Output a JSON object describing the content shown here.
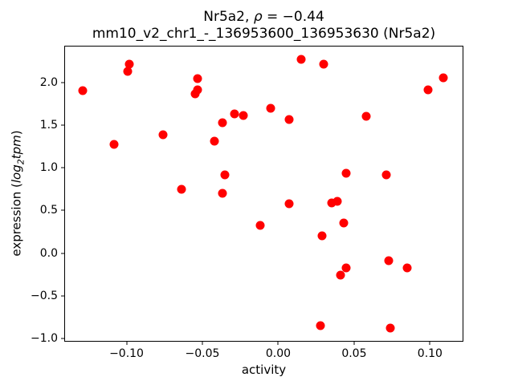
{
  "title": {
    "line1_prefix": "Nr5a2, ",
    "line1_rho": "ρ",
    "line1_suffix": " = −0.44",
    "line2": "mm10_v2_chr1_-_136953600_136953630 (Nr5a2)"
  },
  "axes": {
    "xlabel": "activity",
    "ylabel_prefix": "expression (",
    "ylabel_log": "log",
    "ylabel_sub": "2",
    "ylabel_tpm": "tpm",
    "ylabel_suffix": ")"
  },
  "chart_data": {
    "type": "scatter",
    "title": "Nr5a2, ρ = −0.44",
    "subtitle": "mm10_v2_chr1_-_136953600_136953630 (Nr5a2)",
    "xlabel": "activity",
    "ylabel": "expression (log2 tpm)",
    "xlim": [
      -0.1405,
      0.1215
    ],
    "ylim": [
      -1.03,
      2.425
    ],
    "grid": false,
    "legend": null,
    "marker_color": "#ff0000",
    "marker_diameter_px": 11,
    "spine_color": "#000000",
    "xticks": [
      {
        "v": -0.1,
        "label": "−0.10"
      },
      {
        "v": -0.05,
        "label": "−0.05"
      },
      {
        "v": 0.0,
        "label": "0.00"
      },
      {
        "v": 0.05,
        "label": "0.05"
      },
      {
        "v": 0.1,
        "label": "0.10"
      }
    ],
    "yticks": [
      {
        "v": -1.0,
        "label": "−1.0"
      },
      {
        "v": -0.5,
        "label": "−0.5"
      },
      {
        "v": 0.0,
        "label": "0.0"
      },
      {
        "v": 0.5,
        "label": "0.5"
      },
      {
        "v": 1.0,
        "label": "1.0"
      },
      {
        "v": 1.5,
        "label": "1.5"
      },
      {
        "v": 2.0,
        "label": "2.0"
      }
    ],
    "points": [
      [
        -0.129,
        1.91
      ],
      [
        -0.108,
        1.28
      ],
      [
        -0.099,
        2.13
      ],
      [
        -0.098,
        2.22
      ],
      [
        -0.076,
        1.39
      ],
      [
        -0.064,
        0.75
      ],
      [
        -0.055,
        1.87
      ],
      [
        -0.053,
        2.05
      ],
      [
        -0.053,
        1.92
      ],
      [
        -0.042,
        1.31
      ],
      [
        -0.037,
        1.53
      ],
      [
        -0.037,
        0.7
      ],
      [
        -0.035,
        0.92
      ],
      [
        -0.029,
        1.63
      ],
      [
        -0.023,
        1.62
      ],
      [
        -0.012,
        0.33
      ],
      [
        -0.005,
        1.7
      ],
      [
        0.007,
        1.57
      ],
      [
        0.007,
        0.58
      ],
      [
        0.015,
        2.27
      ],
      [
        0.028,
        -0.85
      ],
      [
        0.029,
        0.2
      ],
      [
        0.03,
        2.22
      ],
      [
        0.035,
        0.59
      ],
      [
        0.039,
        0.61
      ],
      [
        0.041,
        -0.26
      ],
      [
        0.043,
        0.35
      ],
      [
        0.045,
        0.94
      ],
      [
        0.045,
        -0.17
      ],
      [
        0.058,
        1.61
      ],
      [
        0.071,
        0.92
      ],
      [
        0.073,
        -0.09
      ],
      [
        0.074,
        -0.88
      ],
      [
        0.085,
        -0.17
      ],
      [
        0.099,
        1.92
      ],
      [
        0.109,
        2.06
      ]
    ]
  }
}
